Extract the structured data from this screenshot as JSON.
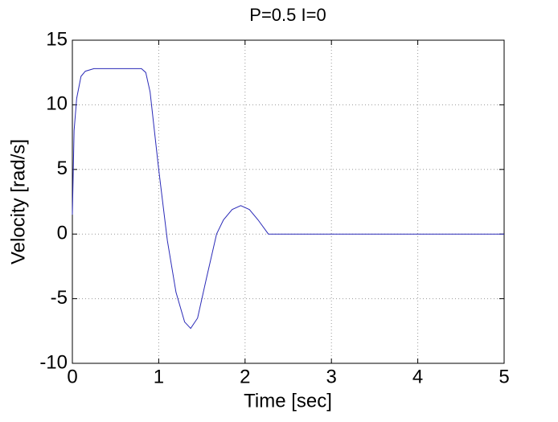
{
  "chart_data": {
    "type": "line",
    "title": "P=0.5 I=0",
    "xlabel": "Time [sec]",
    "ylabel": "Velocity [rad/s]",
    "x": [
      0,
      0.02,
      0.05,
      0.1,
      0.15,
      0.25,
      0.5,
      0.8,
      0.85,
      0.9,
      1.0,
      1.1,
      1.2,
      1.3,
      1.37,
      1.45,
      1.55,
      1.67,
      1.75,
      1.85,
      1.95,
      2.05,
      2.15,
      2.27,
      3,
      4,
      5
    ],
    "series": [
      {
        "color": "#2b2bb8",
        "values": [
          1.5,
          8,
          10.5,
          12.2,
          12.6,
          12.8,
          12.8,
          12.8,
          12.5,
          11,
          5,
          -0.5,
          -4.5,
          -6.8,
          -7.3,
          -6.5,
          -3.5,
          0,
          1.1,
          1.9,
          2.2,
          1.9,
          1.1,
          0,
          0,
          0,
          0
        ]
      }
    ],
    "xlim": [
      0,
      5
    ],
    "xticks": [
      0,
      1,
      2,
      3,
      4,
      5
    ],
    "ylim": [
      -10,
      15
    ],
    "yticks": [
      -10,
      -5,
      0,
      5,
      10,
      15
    ],
    "grid": true
  }
}
